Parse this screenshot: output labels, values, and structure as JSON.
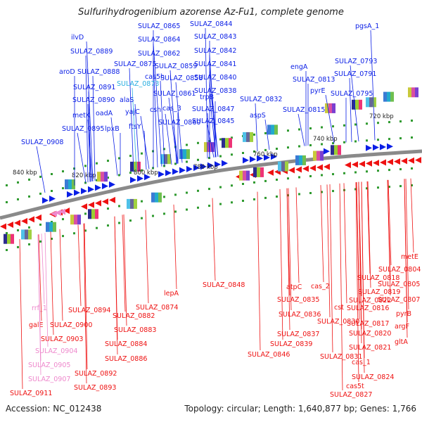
{
  "title": "Sulfurihydrogenibium azorense Az-Fu1, complete genome",
  "footer": {
    "accession": "Accession: NC_012438",
    "summary": "Topology: circular; Length: 1,640,877 bp; Genes: 1,766"
  },
  "colors": {
    "forward": "#0a1ee6",
    "reverse": "#ee1111",
    "highlight_cyan": "#2aaee0",
    "pink": "#ee88cc",
    "backbone": "#8a8a8a",
    "tick": "#2f9a2f"
  },
  "kbp_ticks": [
    "840 kbp",
    "820 kbp",
    "800 kbp",
    "780 kbp",
    "760 kbp",
    "740 kbp",
    "720 kbp"
  ],
  "top_labels": [
    {
      "text": "SULAZ_0865",
      "color": "blue"
    },
    {
      "text": "SULAZ_0844",
      "color": "blue"
    },
    {
      "text": "pgsA_1",
      "color": "blue"
    },
    {
      "text": "ilvD",
      "color": "blue"
    },
    {
      "text": "SULAZ_0864",
      "color": "blue"
    },
    {
      "text": "SULAZ_0843",
      "color": "blue"
    },
    {
      "text": "SULAZ_0889",
      "color": "blue"
    },
    {
      "text": "SULAZ_0862",
      "color": "blue"
    },
    {
      "text": "SULAZ_0842",
      "color": "blue"
    },
    {
      "text": "SULAZ_0793",
      "color": "blue"
    },
    {
      "text": "aroD",
      "color": "blue"
    },
    {
      "text": "SULAZ_0888",
      "color": "blue"
    },
    {
      "text": "SULAZ_0875",
      "color": "blue"
    },
    {
      "text": "SULAZ_0859",
      "color": "blue"
    },
    {
      "text": "SULAZ_0841",
      "color": "blue"
    },
    {
      "text": "engA",
      "color": "blue"
    },
    {
      "text": "SULAZ_0791",
      "color": "blue"
    },
    {
      "text": "cas5h",
      "color": "blue"
    },
    {
      "text": "SULAZ_0858",
      "color": "blue"
    },
    {
      "text": "SULAZ_0840",
      "color": "blue"
    },
    {
      "text": "SULAZ_0813",
      "color": "blue"
    },
    {
      "text": "SULAZ_0891",
      "color": "blue"
    },
    {
      "text": "SULAZ_0873",
      "color": "cyan"
    },
    {
      "text": "SULAZ_0838",
      "color": "blue"
    },
    {
      "text": "pyrE",
      "color": "blue"
    },
    {
      "text": "SULAZ_0795",
      "color": "blue"
    },
    {
      "text": "SULAZ_0890",
      "color": "blue"
    },
    {
      "text": "alaS",
      "color": "blue"
    },
    {
      "text": "csh",
      "color": "blue"
    },
    {
      "text": "SULAZ_0861",
      "color": "blue"
    },
    {
      "text": "trpB",
      "color": "blue"
    },
    {
      "text": "SULAZ_0832",
      "color": "blue"
    },
    {
      "text": "metK",
      "color": "blue"
    },
    {
      "text": "oadA",
      "color": "blue"
    },
    {
      "text": "yajC",
      "color": "blue"
    },
    {
      "text": "cas_3",
      "color": "blue"
    },
    {
      "text": "SULAZ_0847",
      "color": "blue"
    },
    {
      "text": "aspS",
      "color": "blue"
    },
    {
      "text": "SULAZ_0815",
      "color": "blue"
    },
    {
      "text": "SULAZ_0895",
      "color": "blue"
    },
    {
      "text": "lpxB",
      "color": "blue"
    },
    {
      "text": "ftsY",
      "color": "blue"
    },
    {
      "text": "SULAZ_0860",
      "color": "blue"
    },
    {
      "text": "SULAZ_0845",
      "color": "blue"
    },
    {
      "text": "SULAZ_0908",
      "color": "blue"
    }
  ],
  "bottom_labels": [
    {
      "text": "metE",
      "color": "red"
    },
    {
      "text": "SULAZ_0848",
      "color": "red"
    },
    {
      "text": "lepA",
      "color": "red"
    },
    {
      "text": "SULAZ_0804",
      "color": "red"
    },
    {
      "text": "SULAZ_0818",
      "color": "red"
    },
    {
      "text": "atpC",
      "color": "red"
    },
    {
      "text": "cas_2",
      "color": "red"
    },
    {
      "text": "SULAZ_0805",
      "color": "red"
    },
    {
      "text": "SULAZ_0835",
      "color": "red"
    },
    {
      "text": "SULAZ_0819",
      "color": "red"
    },
    {
      "text": "SULAZ_0874",
      "color": "red"
    },
    {
      "text": "SULAZ_0822",
      "color": "red"
    },
    {
      "text": "SULAZ_0807",
      "color": "red"
    },
    {
      "text": "rrf_1",
      "color": "pink"
    },
    {
      "text": "SULAZ_0894",
      "color": "red"
    },
    {
      "text": "SULAZ_0836",
      "color": "red"
    },
    {
      "text": "cst",
      "color": "red"
    },
    {
      "text": "SULAZ_0816",
      "color": "red"
    },
    {
      "text": "SULAZ_0882",
      "color": "red"
    },
    {
      "text": "pyrB",
      "color": "red"
    },
    {
      "text": "galE",
      "color": "red"
    },
    {
      "text": "SULAZ_0900",
      "color": "red"
    },
    {
      "text": "SULAZ_0830",
      "color": "red"
    },
    {
      "text": "SULAZ_0817",
      "color": "red"
    },
    {
      "text": "SULAZ_0883",
      "color": "red"
    },
    {
      "text": "argF",
      "color": "red"
    },
    {
      "text": "SULAZ_0837",
      "color": "red"
    },
    {
      "text": "SULAZ_0820",
      "color": "red"
    },
    {
      "text": "SULAZ_0903",
      "color": "red"
    },
    {
      "text": "gltA",
      "color": "red"
    },
    {
      "text": "SULAZ_0884",
      "color": "red"
    },
    {
      "text": "SULAZ_0839",
      "color": "red"
    },
    {
      "text": "SULAZ_0821",
      "color": "red"
    },
    {
      "text": "SULAZ_0904",
      "color": "pink"
    },
    {
      "text": "SULAZ_0846",
      "color": "red"
    },
    {
      "text": "SULAZ_0831",
      "color": "red"
    },
    {
      "text": "SULAZ_0886",
      "color": "red"
    },
    {
      "text": "SULAZ_0905",
      "color": "pink"
    },
    {
      "text": "cas_1",
      "color": "red"
    },
    {
      "text": "SULAZ_0892",
      "color": "red"
    },
    {
      "text": "SULAZ_0824",
      "color": "red"
    },
    {
      "text": "SULAZ_0907",
      "color": "pink"
    },
    {
      "text": "cas5t",
      "color": "red"
    },
    {
      "text": "SULAZ_0893",
      "color": "red"
    },
    {
      "text": "SULAZ_0911",
      "color": "red"
    },
    {
      "text": "SULAZ_0827",
      "color": "red"
    }
  ]
}
